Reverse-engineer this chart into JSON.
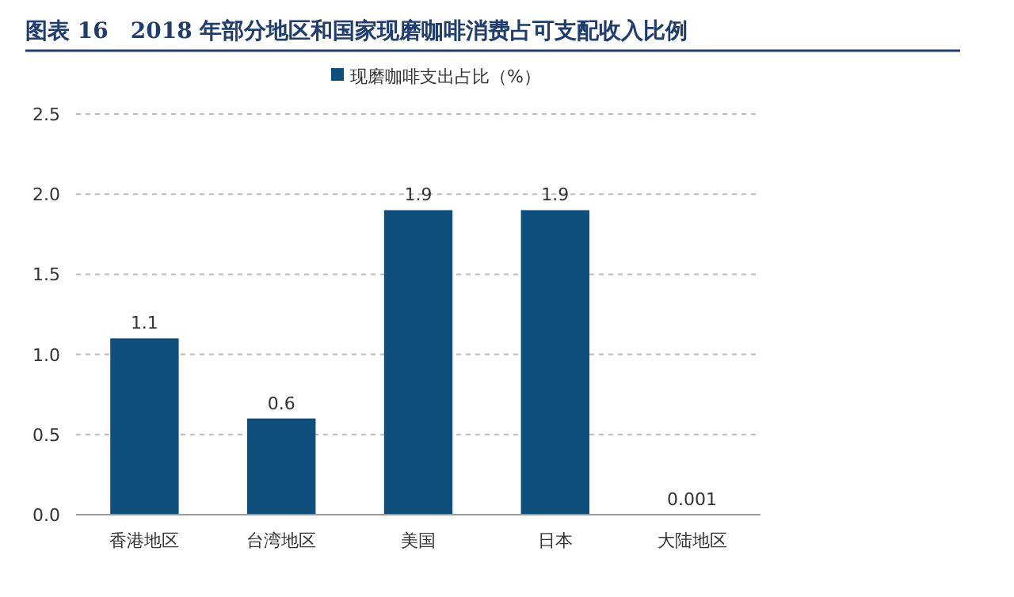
{
  "chart_data": {
    "type": "bar",
    "title": "图表 16　2018 年部分地区和国家现磨咖啡消费占可支配收入比例",
    "categories": [
      "香港地区",
      "台湾地区",
      "美国",
      "日本",
      "大陆地区"
    ],
    "series": [
      {
        "name": "现磨咖啡支出占比（%）",
        "color": "#0e4f7d",
        "values": [
          1.1,
          0.6,
          1.9,
          1.9,
          0.001
        ]
      }
    ],
    "ylim": [
      0,
      2.5
    ],
    "yticks": [
      {
        "value": 0,
        "label": "0.0"
      },
      {
        "value": 0.5,
        "label": "0.5"
      },
      {
        "value": 1,
        "label": "1.0"
      },
      {
        "value": 1.5,
        "label": "1.5"
      },
      {
        "value": 2,
        "label": "2.0"
      },
      {
        "value": 2.5,
        "label": "2.5"
      }
    ],
    "grid": "y",
    "legend": "top",
    "data_labels": true
  }
}
